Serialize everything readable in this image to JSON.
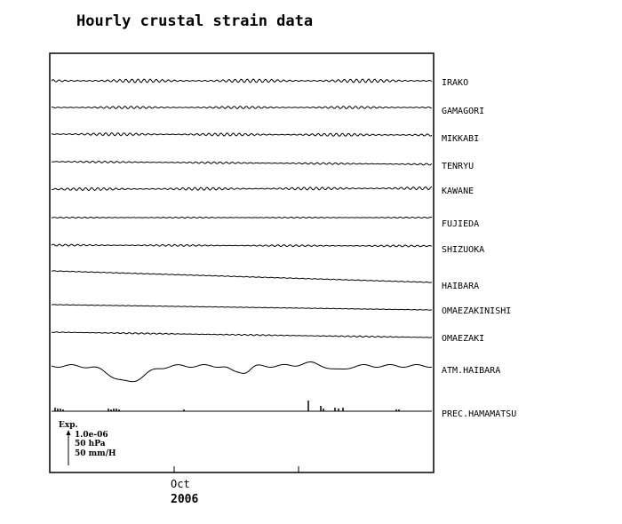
{
  "chart_data": {
    "type": "line",
    "title": "Hourly crustal strain data",
    "x_tick_labels": [
      "Oct"
    ],
    "x_year_label": "2006",
    "series": [
      {
        "name": "IRAKO",
        "style": "tidal",
        "amp": 2.0,
        "drift": 0
      },
      {
        "name": "GAMAGORI",
        "style": "tidal",
        "amp": 1.4,
        "drift": 0
      },
      {
        "name": "MIKKABI",
        "style": "tidal",
        "amp": 1.6,
        "drift": 1
      },
      {
        "name": "TENRYU",
        "style": "tidal",
        "amp": 1.0,
        "drift": 3
      },
      {
        "name": "KAWANE",
        "style": "tidal",
        "amp": 1.6,
        "drift": -1
      },
      {
        "name": "FUJIEDA",
        "style": "tidal",
        "amp": 0.6,
        "drift": 0
      },
      {
        "name": "SHIZUOKA",
        "style": "tidal",
        "amp": 1.0,
        "drift": 1
      },
      {
        "name": "HAIBARA",
        "style": "drift",
        "amp": 0.3,
        "drift": 13
      },
      {
        "name": "OMAEZAKINISHI",
        "style": "drift",
        "amp": 0.2,
        "drift": 6
      },
      {
        "name": "OMAEZAKI",
        "style": "tidal",
        "amp": 0.7,
        "drift": 6
      },
      {
        "name": "ATM.HAIBARA",
        "style": "pressure",
        "amp": 1.0,
        "drift": 0
      },
      {
        "name": "PREC.HAMAMATSU",
        "style": "precip",
        "amp": 0,
        "drift": 0
      }
    ],
    "scale_legend": {
      "label": "Exp.",
      "strain": "1.0e-06",
      "pressure": "50 hPa",
      "precip": "50 mm/H"
    },
    "grid": false
  }
}
